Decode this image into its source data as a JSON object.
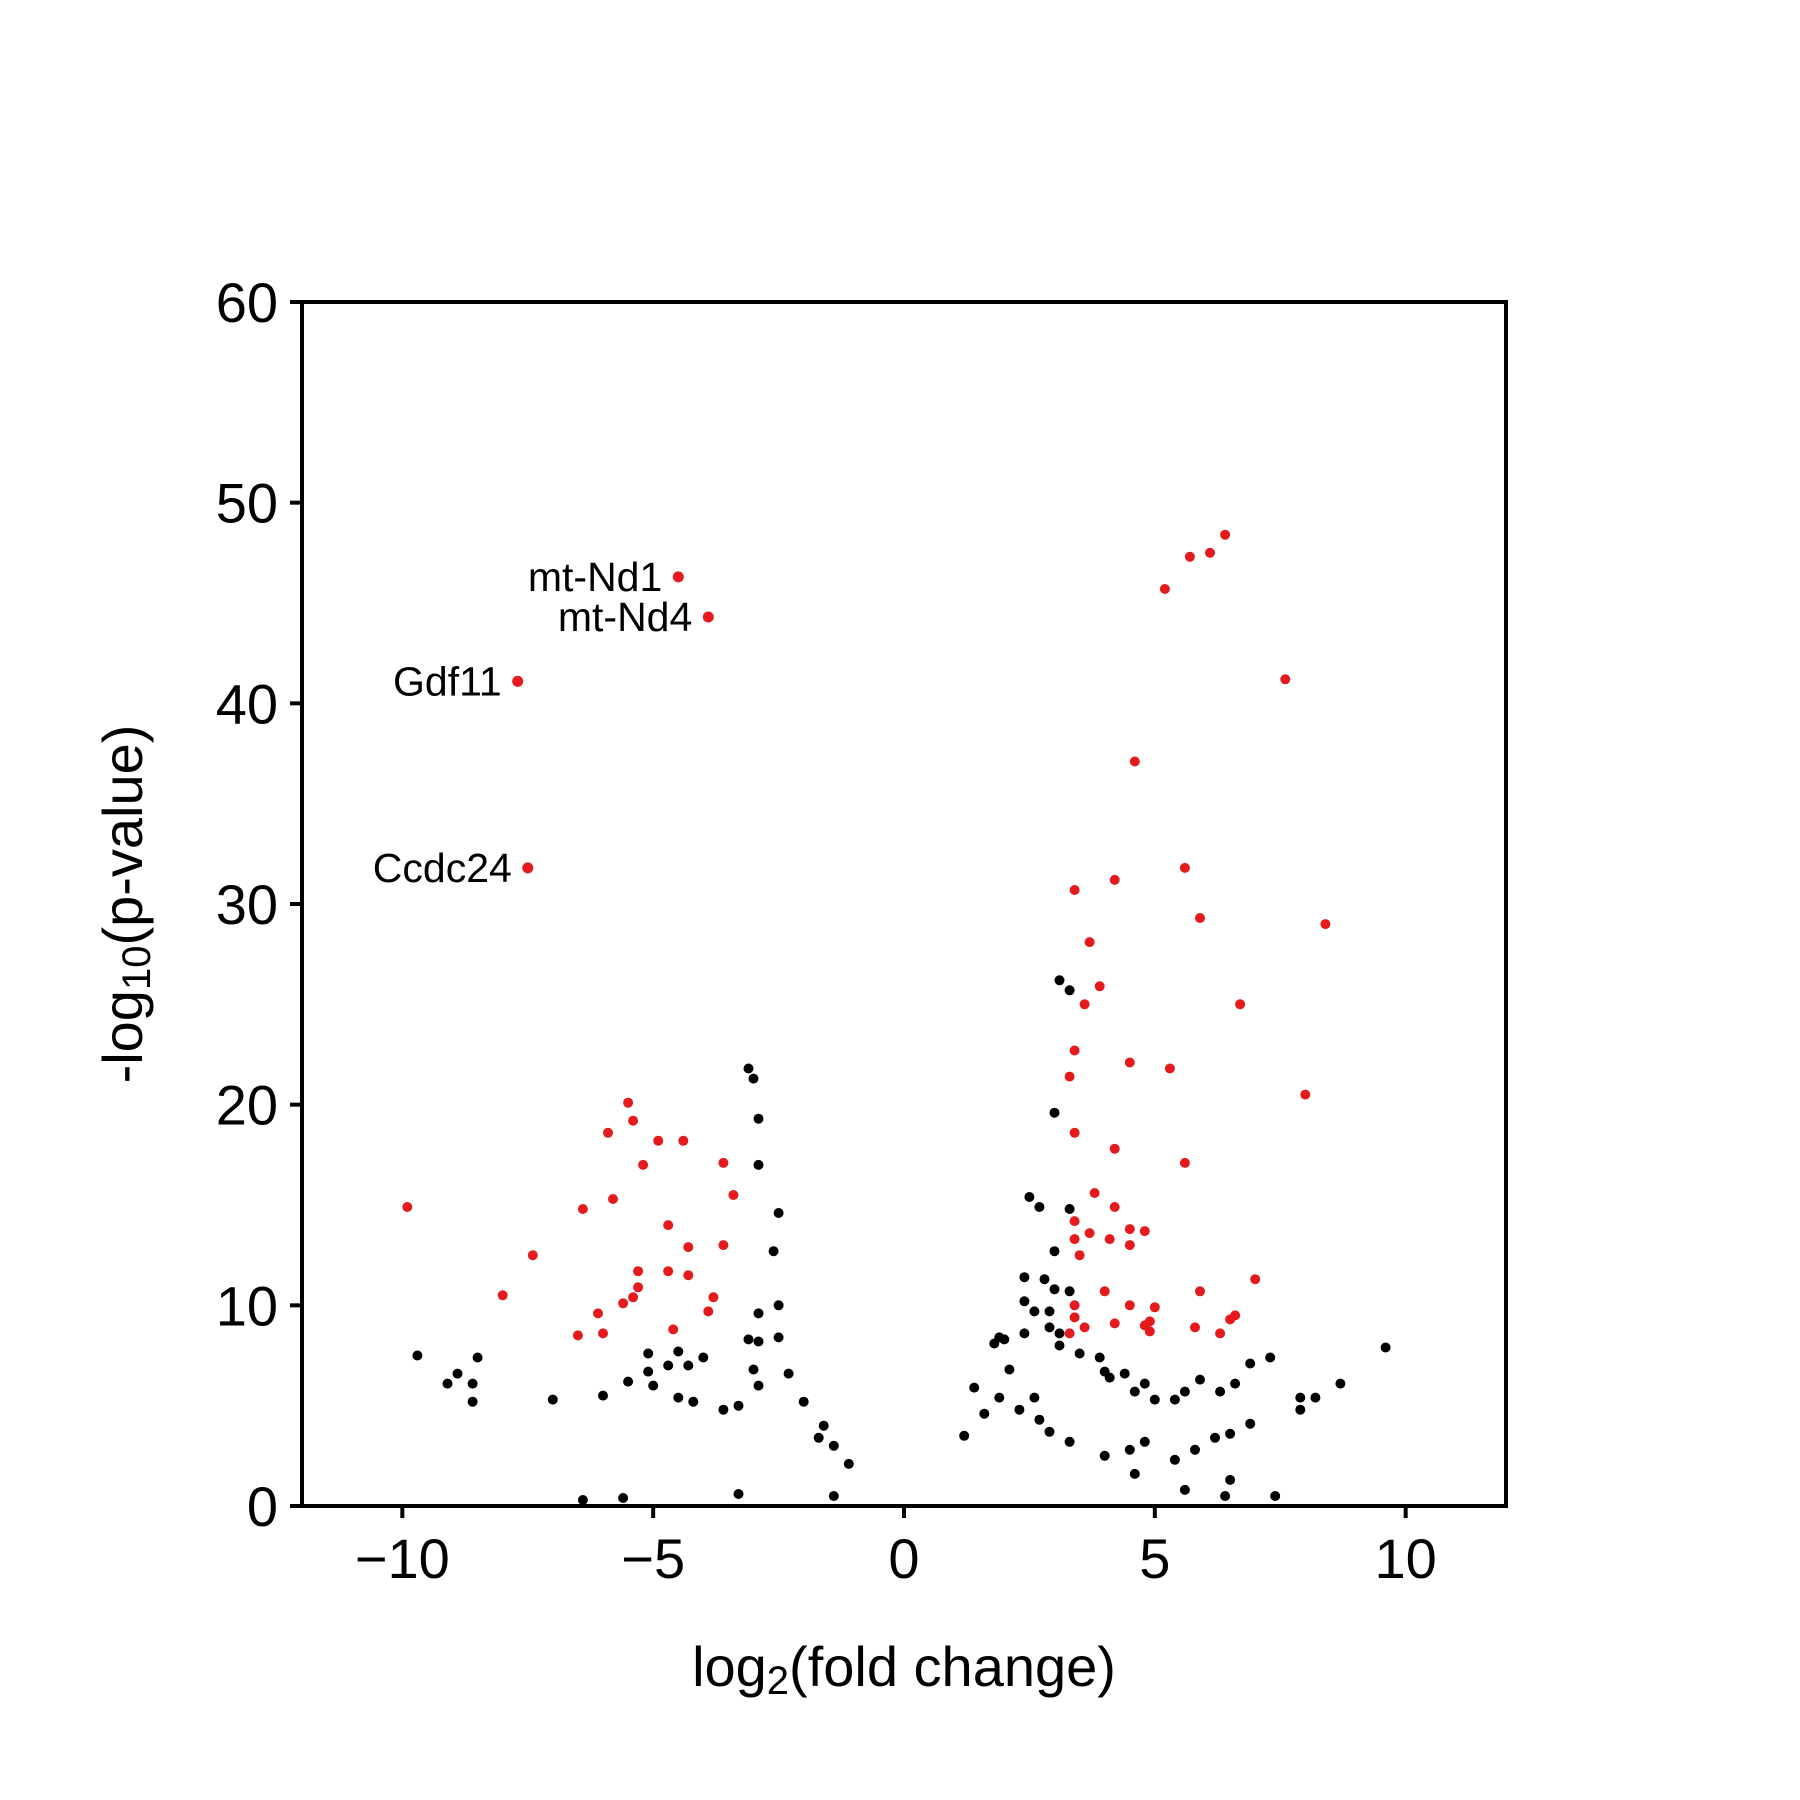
{
  "chart_data": {
    "type": "scatter",
    "title": "",
    "xlabel": {
      "base": "log",
      "sub": "2",
      "rest": "(fold change)"
    },
    "ylabel": {
      "base": "-log",
      "sub": "10",
      "rest": "(p-value)"
    },
    "xlim": [
      -12,
      12
    ],
    "ylim": [
      0,
      60
    ],
    "xticks": [
      -10,
      -5,
      0,
      5,
      10
    ],
    "xtick_labels": [
      "−10",
      "−5",
      "0",
      "5",
      "10"
    ],
    "yticks": [
      0,
      10,
      20,
      30,
      40,
      50,
      60
    ],
    "ytick_labels": [
      "0",
      "10",
      "20",
      "30",
      "40",
      "50",
      "60"
    ],
    "grid": false,
    "colors": {
      "significant": "#e41a1c",
      "background": "#000000"
    },
    "labeled_points": [
      {
        "label": "mt-Nd1",
        "x": -4.5,
        "y": 46.3
      },
      {
        "label": "mt-Nd4",
        "x": -3.9,
        "y": 44.3
      },
      {
        "label": "Gdf11",
        "x": -7.7,
        "y": 41.1
      },
      {
        "label": "Ccdc24",
        "x": -7.5,
        "y": 31.8
      }
    ],
    "series": [
      {
        "color": "#e41a1c",
        "points": [
          [
            -9.9,
            14.9
          ],
          [
            -7.4,
            12.5
          ],
          [
            -8.0,
            10.5
          ],
          [
            -6.5,
            8.5
          ],
          [
            -6.4,
            14.8
          ],
          [
            -6.1,
            9.6
          ],
          [
            -6.0,
            8.6
          ],
          [
            -5.9,
            18.6
          ],
          [
            -5.8,
            15.3
          ],
          [
            -5.6,
            10.1
          ],
          [
            -5.5,
            20.1
          ],
          [
            -5.4,
            19.2
          ],
          [
            -5.4,
            10.4
          ],
          [
            -5.3,
            10.9
          ],
          [
            -5.3,
            11.7
          ],
          [
            -5.2,
            17.0
          ],
          [
            -4.9,
            18.2
          ],
          [
            -4.7,
            14.0
          ],
          [
            -4.7,
            11.7
          ],
          [
            -4.6,
            8.8
          ],
          [
            -4.4,
            18.2
          ],
          [
            -4.3,
            12.9
          ],
          [
            -4.3,
            11.5
          ],
          [
            -3.9,
            9.7
          ],
          [
            -3.8,
            10.4
          ],
          [
            -3.6,
            17.1
          ],
          [
            -3.6,
            13.0
          ],
          [
            -3.4,
            15.5
          ],
          [
            3.3,
            21.4
          ],
          [
            3.3,
            8.6
          ],
          [
            3.4,
            30.7
          ],
          [
            3.4,
            22.7
          ],
          [
            3.4,
            18.6
          ],
          [
            3.4,
            14.2
          ],
          [
            3.4,
            13.3
          ],
          [
            3.4,
            10.0
          ],
          [
            3.4,
            9.4
          ],
          [
            3.6,
            25.0
          ],
          [
            3.5,
            12.5
          ],
          [
            3.6,
            8.9
          ],
          [
            3.7,
            28.1
          ],
          [
            3.7,
            13.6
          ],
          [
            3.8,
            15.6
          ],
          [
            3.9,
            25.9
          ],
          [
            4.0,
            10.7
          ],
          [
            4.1,
            13.3
          ],
          [
            4.2,
            31.2
          ],
          [
            4.2,
            17.8
          ],
          [
            4.2,
            14.9
          ],
          [
            4.2,
            9.1
          ],
          [
            4.5,
            22.1
          ],
          [
            4.5,
            13.8
          ],
          [
            4.5,
            10.0
          ],
          [
            4.5,
            13.0
          ],
          [
            4.6,
            37.1
          ],
          [
            4.8,
            13.7
          ],
          [
            4.8,
            9.0
          ],
          [
            4.9,
            8.7
          ],
          [
            4.9,
            9.2
          ],
          [
            5.0,
            9.9
          ],
          [
            5.2,
            45.7
          ],
          [
            5.3,
            21.8
          ],
          [
            5.6,
            31.8
          ],
          [
            5.6,
            17.1
          ],
          [
            5.7,
            47.3
          ],
          [
            5.8,
            8.9
          ],
          [
            5.9,
            10.7
          ],
          [
            5.9,
            29.3
          ],
          [
            6.1,
            47.5
          ],
          [
            6.3,
            8.6
          ],
          [
            6.4,
            48.4
          ],
          [
            6.5,
            9.3
          ],
          [
            6.6,
            9.5
          ],
          [
            6.7,
            25.0
          ],
          [
            7.0,
            11.3
          ],
          [
            7.6,
            41.2
          ],
          [
            8.0,
            20.5
          ],
          [
            8.4,
            29.0
          ]
        ]
      },
      {
        "color": "#000000",
        "points": [
          [
            -3.1,
            21.8
          ],
          [
            -3.0,
            21.3
          ],
          [
            -2.9,
            19.3
          ],
          [
            -2.9,
            17.0
          ],
          [
            -2.5,
            14.6
          ],
          [
            -2.6,
            12.7
          ],
          [
            -2.5,
            10.0
          ],
          [
            -2.9,
            9.6
          ],
          [
            -3.1,
            8.3
          ],
          [
            -2.9,
            8.2
          ],
          [
            -2.5,
            8.4
          ],
          [
            -4.5,
            7.7
          ],
          [
            -4.3,
            7.0
          ],
          [
            -4.0,
            7.4
          ],
          [
            -4.7,
            7.0
          ],
          [
            -5.1,
            7.6
          ],
          [
            -9.7,
            7.5
          ],
          [
            -8.5,
            7.4
          ],
          [
            -8.9,
            6.6
          ],
          [
            -9.1,
            6.1
          ],
          [
            -8.6,
            6.1
          ],
          [
            -8.6,
            5.2
          ],
          [
            -7.0,
            5.3
          ],
          [
            -6.0,
            5.5
          ],
          [
            -5.5,
            6.2
          ],
          [
            -5.1,
            6.7
          ],
          [
            -5.0,
            6.0
          ],
          [
            -4.5,
            5.4
          ],
          [
            -4.2,
            5.2
          ],
          [
            -3.6,
            4.8
          ],
          [
            -3.3,
            5.0
          ],
          [
            -3.0,
            6.8
          ],
          [
            -2.9,
            6.0
          ],
          [
            -2.3,
            6.6
          ],
          [
            -2.0,
            5.2
          ],
          [
            -1.6,
            4.0
          ],
          [
            -1.7,
            3.4
          ],
          [
            -1.4,
            3.0
          ],
          [
            -1.1,
            2.1
          ],
          [
            -6.4,
            0.3
          ],
          [
            -5.6,
            0.4
          ],
          [
            -3.3,
            0.6
          ],
          [
            -1.4,
            0.5
          ],
          [
            3.1,
            26.2
          ],
          [
            3.3,
            25.7
          ],
          [
            3.0,
            19.6
          ],
          [
            2.5,
            15.4
          ],
          [
            2.7,
            14.9
          ],
          [
            3.3,
            14.8
          ],
          [
            3.0,
            12.7
          ],
          [
            2.4,
            11.4
          ],
          [
            2.8,
            11.3
          ],
          [
            3.0,
            10.8
          ],
          [
            3.3,
            10.7
          ],
          [
            2.4,
            10.2
          ],
          [
            2.6,
            9.7
          ],
          [
            2.9,
            9.7
          ],
          [
            2.9,
            8.9
          ],
          [
            2.4,
            8.6
          ],
          [
            2.0,
            8.3
          ],
          [
            1.9,
            8.4
          ],
          [
            1.8,
            8.1
          ],
          [
            3.1,
            8.6
          ],
          [
            3.1,
            8.0
          ],
          [
            3.5,
            7.6
          ],
          [
            3.9,
            7.4
          ],
          [
            4.0,
            6.7
          ],
          [
            4.1,
            6.4
          ],
          [
            4.4,
            6.6
          ],
          [
            4.6,
            5.7
          ],
          [
            4.8,
            6.1
          ],
          [
            5.0,
            5.3
          ],
          [
            5.4,
            5.3
          ],
          [
            5.6,
            5.7
          ],
          [
            5.9,
            6.3
          ],
          [
            6.3,
            5.7
          ],
          [
            6.6,
            6.1
          ],
          [
            6.9,
            7.1
          ],
          [
            7.3,
            7.4
          ],
          [
            9.6,
            7.9
          ],
          [
            8.7,
            6.1
          ],
          [
            8.2,
            5.4
          ],
          [
            7.9,
            5.4
          ],
          [
            7.9,
            4.8
          ],
          [
            6.9,
            4.1
          ],
          [
            6.5,
            3.6
          ],
          [
            6.2,
            3.4
          ],
          [
            5.8,
            2.8
          ],
          [
            5.4,
            2.3
          ],
          [
            4.6,
            1.6
          ],
          [
            4.8,
            3.2
          ],
          [
            4.5,
            2.8
          ],
          [
            4.0,
            2.5
          ],
          [
            6.5,
            1.3
          ],
          [
            6.4,
            0.5
          ],
          [
            7.4,
            0.5
          ],
          [
            5.6,
            0.8
          ],
          [
            1.2,
            3.5
          ],
          [
            1.6,
            4.6
          ],
          [
            1.4,
            5.9
          ],
          [
            1.9,
            5.4
          ],
          [
            2.1,
            6.8
          ],
          [
            2.6,
            5.4
          ],
          [
            2.3,
            4.8
          ],
          [
            2.7,
            4.3
          ],
          [
            2.9,
            3.7
          ],
          [
            3.3,
            3.2
          ]
        ]
      }
    ]
  }
}
